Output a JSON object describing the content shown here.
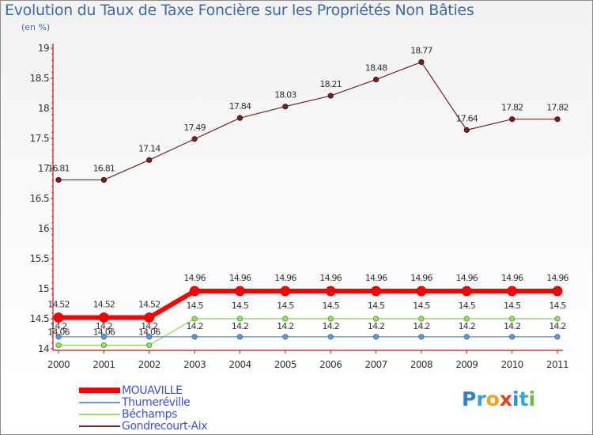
{
  "header": {
    "title": "Evolution du Taux de Taxe Foncière sur les Propriétés Non Bâties",
    "unit": "(en %)"
  },
  "chart_data": {
    "type": "line",
    "title": "Evolution du Taux de Taxe Foncière sur les Propriétés Non Bâties",
    "ylabel": "(en %)",
    "xlabel": "",
    "categories": [
      "2000",
      "2001",
      "2002",
      "2003",
      "2004",
      "2005",
      "2006",
      "2007",
      "2008",
      "2009",
      "2010",
      "2011"
    ],
    "ylim": [
      14,
      19
    ],
    "yticks": [
      "14",
      "14.5",
      "15",
      "15.5",
      "16",
      "16.5",
      "17",
      "17.5",
      "18",
      "18.5",
      "19"
    ],
    "grid": false,
    "legend_position": "bottom-left",
    "series": [
      {
        "name": "MOUAVILLE",
        "color": "#ff0000",
        "values": [
          14.52,
          14.52,
          14.52,
          14.96,
          14.96,
          14.96,
          14.96,
          14.96,
          14.96,
          14.96,
          14.96,
          14.96
        ],
        "labels": [
          "14.52",
          "14.52",
          "14.52",
          "14.96",
          "14.96",
          "14.96",
          "14.96",
          "14.96",
          "14.96",
          "14.96",
          "14.96",
          "14.96"
        ]
      },
      {
        "name": "Thumeréville",
        "color": "#6699cc",
        "values": [
          14.2,
          14.2,
          14.2,
          14.2,
          14.2,
          14.2,
          14.2,
          14.2,
          14.2,
          14.2,
          14.2,
          14.2
        ],
        "labels": [
          "14.2",
          "14.2",
          "14.2",
          "14.2",
          "14.2",
          "14.2",
          "14.2",
          "14.2",
          "14.2",
          "14.2",
          "14.2",
          "14.2"
        ]
      },
      {
        "name": "Béchamps",
        "color": "#99dd66",
        "values": [
          14.06,
          14.06,
          14.06,
          14.5,
          14.5,
          14.5,
          14.5,
          14.5,
          14.5,
          14.5,
          14.5,
          14.5
        ],
        "labels": [
          "14.06",
          "14.06",
          "14.06",
          "14.5",
          "14.5",
          "14.5",
          "14.5",
          "14.5",
          "14.5",
          "14.5",
          "14.5",
          "14.5"
        ]
      },
      {
        "name": "Gondrecourt-Aix",
        "color": "#772222",
        "values": [
          16.81,
          16.81,
          17.14,
          17.49,
          17.84,
          18.03,
          18.21,
          18.48,
          18.77,
          17.64,
          17.82,
          17.82
        ],
        "labels": [
          "16.81",
          "16.81",
          "17.14",
          "17.49",
          "17.84",
          "18.03",
          "18.21",
          "18.48",
          "18.77",
          "17.64",
          "17.82",
          "17.82"
        ]
      }
    ]
  },
  "legend": {
    "items": [
      {
        "label": "MOUAVILLE",
        "color": "#ff0000"
      },
      {
        "label": "Thumeréville",
        "color": "#6699cc"
      },
      {
        "label": "Béchamps",
        "color": "#99dd66"
      },
      {
        "label": "Gondrecourt-Aix",
        "color": "#772222"
      }
    ]
  },
  "logo": {
    "letters": [
      {
        "char": "P",
        "color": "#2f7fd0"
      },
      {
        "char": "r",
        "color": "#3b9ad8"
      },
      {
        "char": "o",
        "color": "#f0a020"
      },
      {
        "char": "x",
        "color": "#e04020"
      },
      {
        "char": "i",
        "color": "#2f8fd8"
      },
      {
        "char": "t",
        "color": "#3aa8c8"
      },
      {
        "char": "i",
        "color": "#6cbf3c"
      }
    ]
  }
}
